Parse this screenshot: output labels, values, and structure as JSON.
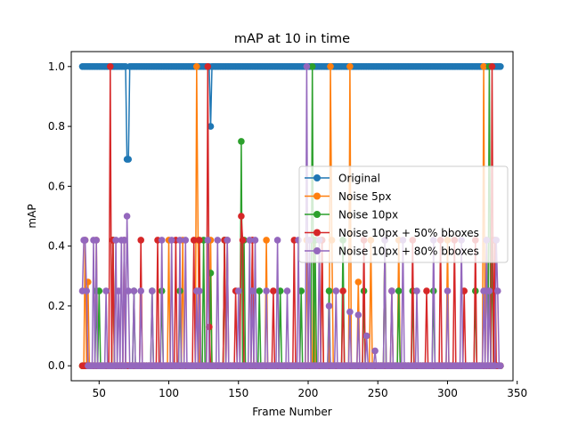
{
  "chart_data": {
    "type": "line",
    "title": "mAP at 10 in time",
    "xlabel": "Frame Number",
    "ylabel": "mAP",
    "xlim": [
      30,
      347
    ],
    "ylim": [
      -0.05,
      1.05
    ],
    "x_ticks": [
      50,
      100,
      150,
      200,
      250,
      300,
      350
    ],
    "y_ticks": [
      0.0,
      0.2,
      0.4,
      0.6,
      0.8,
      1.0
    ],
    "x_tick_labels": [
      "50",
      "100",
      "150",
      "200",
      "250",
      "300",
      "350"
    ],
    "y_tick_labels": [
      "0.0",
      "0.2",
      "0.4",
      "0.6",
      "0.8",
      "1.0"
    ],
    "grid": false,
    "legend_position": "center-right",
    "marker": "circle",
    "frame_range": [
      38,
      338
    ],
    "series": [
      {
        "name": "Original",
        "color": "#1f77b4",
        "base": 1.0,
        "points": [
          [
            70,
            0.69
          ],
          [
            71,
            0.69
          ],
          [
            72,
            1.0
          ],
          [
            129,
            1.0
          ],
          [
            130,
            0.8
          ],
          [
            131,
            1.0
          ]
        ]
      },
      {
        "name": "Noise 5px",
        "color": "#ff7f0e",
        "base": 0.0,
        "points": [
          [
            40,
            0.42
          ],
          [
            42,
            0.28
          ],
          [
            44,
            0.0
          ],
          [
            48,
            0.42
          ],
          [
            60,
            0.42
          ],
          [
            62,
            0.0
          ],
          [
            100,
            0.42
          ],
          [
            105,
            0.0
          ],
          [
            110,
            0.42
          ],
          [
            115,
            0.0
          ],
          [
            120,
            1.0
          ],
          [
            121,
            0.42
          ],
          [
            123,
            0.0
          ],
          [
            130,
            0.42
          ],
          [
            133,
            0.0
          ],
          [
            140,
            0.42
          ],
          [
            145,
            0.0
          ],
          [
            160,
            0.42
          ],
          [
            163,
            0.0
          ],
          [
            170,
            0.42
          ],
          [
            172,
            0.0
          ],
          [
            199,
            0.42
          ],
          [
            201,
            0.0
          ],
          [
            204,
            0.42
          ],
          [
            206,
            0.0
          ],
          [
            210,
            0.42
          ],
          [
            212,
            0.0
          ],
          [
            216,
            1.0
          ],
          [
            217,
            0.42
          ],
          [
            219,
            0.0
          ],
          [
            230,
            1.0
          ],
          [
            232,
            0.0
          ],
          [
            236,
            0.28
          ],
          [
            238,
            0.0
          ],
          [
            245,
            0.42
          ],
          [
            247,
            0.0
          ],
          [
            255,
            0.42
          ],
          [
            257,
            0.0
          ],
          [
            265,
            0.42
          ],
          [
            267,
            0.0
          ],
          [
            300,
            0.42
          ],
          [
            302,
            0.0
          ],
          [
            326,
            1.0
          ],
          [
            328,
            0.42
          ],
          [
            330,
            0.0
          ]
        ]
      },
      {
        "name": "Noise 10px",
        "color": "#2ca02c",
        "base": 0.0,
        "points": [
          [
            48,
            0.25
          ],
          [
            50,
            0.25
          ],
          [
            52,
            0.0
          ],
          [
            60,
            0.42
          ],
          [
            62,
            0.0
          ],
          [
            75,
            0.25
          ],
          [
            77,
            0.0
          ],
          [
            88,
            0.25
          ],
          [
            90,
            0.0
          ],
          [
            95,
            0.25
          ],
          [
            97,
            0.0
          ],
          [
            108,
            0.25
          ],
          [
            110,
            0.0
          ],
          [
            125,
            0.42
          ],
          [
            127,
            0.0
          ],
          [
            130,
            0.31
          ],
          [
            132,
            0.0
          ],
          [
            140,
            0.42
          ],
          [
            143,
            0.0
          ],
          [
            152,
            0.75
          ],
          [
            154,
            0.42
          ],
          [
            156,
            0.0
          ],
          [
            165,
            0.25
          ],
          [
            167,
            0.0
          ],
          [
            180,
            0.25
          ],
          [
            182,
            0.0
          ],
          [
            195,
            0.25
          ],
          [
            197,
            0.0
          ],
          [
            203,
            1.0
          ],
          [
            205,
            0.42
          ],
          [
            207,
            0.0
          ],
          [
            215,
            0.25
          ],
          [
            217,
            0.0
          ],
          [
            225,
            0.42
          ],
          [
            227,
            0.0
          ],
          [
            240,
            0.25
          ],
          [
            242,
            0.0
          ],
          [
            255,
            0.42
          ],
          [
            257,
            0.0
          ],
          [
            265,
            0.25
          ],
          [
            267,
            0.0
          ],
          [
            275,
            0.25
          ],
          [
            277,
            0.0
          ],
          [
            290,
            0.25
          ],
          [
            292,
            0.0
          ],
          [
            320,
            0.25
          ],
          [
            322,
            0.0
          ],
          [
            330,
            1.0
          ],
          [
            332,
            0.42
          ],
          [
            334,
            0.0
          ]
        ]
      },
      {
        "name": "Noise 10px + 50% bboxes",
        "color": "#d62728",
        "base": 0.0,
        "points": [
          [
            38,
            0.0
          ],
          [
            58,
            1.0
          ],
          [
            60,
            0.42
          ],
          [
            62,
            0.0
          ],
          [
            68,
            0.42
          ],
          [
            70,
            0.0
          ],
          [
            80,
            0.42
          ],
          [
            82,
            0.0
          ],
          [
            92,
            0.42
          ],
          [
            94,
            0.0
          ],
          [
            105,
            0.42
          ],
          [
            107,
            0.0
          ],
          [
            118,
            0.42
          ],
          [
            119,
            0.0
          ],
          [
            122,
            0.42
          ],
          [
            124,
            0.0
          ],
          [
            128,
            1.0
          ],
          [
            129,
            0.13
          ],
          [
            131,
            0.0
          ],
          [
            140,
            0.42
          ],
          [
            142,
            0.42
          ],
          [
            144,
            0.0
          ],
          [
            148,
            0.25
          ],
          [
            150,
            0.0
          ],
          [
            152,
            0.5
          ],
          [
            153,
            0.42
          ],
          [
            155,
            0.0
          ],
          [
            160,
            0.42
          ],
          [
            162,
            0.0
          ],
          [
            175,
            0.25
          ],
          [
            177,
            0.0
          ],
          [
            190,
            0.42
          ],
          [
            192,
            0.0
          ],
          [
            210,
            0.42
          ],
          [
            212,
            0.0
          ],
          [
            225,
            0.25
          ],
          [
            227,
            0.0
          ],
          [
            240,
            0.42
          ],
          [
            242,
            0.0
          ],
          [
            260,
            0.25
          ],
          [
            262,
            0.0
          ],
          [
            275,
            0.42
          ],
          [
            277,
            0.0
          ],
          [
            285,
            0.25
          ],
          [
            287,
            0.0
          ],
          [
            295,
            0.42
          ],
          [
            297,
            0.0
          ],
          [
            305,
            0.42
          ],
          [
            307,
            0.0
          ],
          [
            312,
            0.25
          ],
          [
            314,
            0.0
          ],
          [
            320,
            0.42
          ],
          [
            322,
            0.0
          ],
          [
            332,
            1.0
          ],
          [
            334,
            0.42
          ],
          [
            336,
            0.0
          ]
        ]
      },
      {
        "name": "Noise 10px + 80% bboxes",
        "color": "#9467bd",
        "base": 0.0,
        "points": [
          [
            38,
            0.25
          ],
          [
            39,
            0.42
          ],
          [
            40,
            0.42
          ],
          [
            41,
            0.25
          ],
          [
            43,
            0.0
          ],
          [
            46,
            0.42
          ],
          [
            48,
            0.42
          ],
          [
            50,
            0.0
          ],
          [
            55,
            0.25
          ],
          [
            57,
            0.0
          ],
          [
            62,
            0.42
          ],
          [
            64,
            0.25
          ],
          [
            66,
            0.42
          ],
          [
            68,
            0.42
          ],
          [
            70,
            0.5
          ],
          [
            71,
            0.25
          ],
          [
            72,
            0.0
          ],
          [
            75,
            0.25
          ],
          [
            77,
            0.0
          ],
          [
            80,
            0.25
          ],
          [
            82,
            0.0
          ],
          [
            88,
            0.25
          ],
          [
            90,
            0.0
          ],
          [
            95,
            0.42
          ],
          [
            97,
            0.0
          ],
          [
            102,
            0.42
          ],
          [
            104,
            0.0
          ],
          [
            108,
            0.42
          ],
          [
            110,
            0.0
          ],
          [
            112,
            0.42
          ],
          [
            114,
            0.0
          ],
          [
            120,
            0.25
          ],
          [
            122,
            0.25
          ],
          [
            124,
            0.0
          ],
          [
            128,
            0.42
          ],
          [
            130,
            0.0
          ],
          [
            135,
            0.42
          ],
          [
            137,
            0.0
          ],
          [
            142,
            0.42
          ],
          [
            144,
            0.0
          ],
          [
            150,
            0.25
          ],
          [
            152,
            0.0
          ],
          [
            158,
            0.42
          ],
          [
            160,
            0.25
          ],
          [
            162,
            0.42
          ],
          [
            164,
            0.0
          ],
          [
            170,
            0.25
          ],
          [
            172,
            0.0
          ],
          [
            178,
            0.42
          ],
          [
            180,
            0.0
          ],
          [
            185,
            0.25
          ],
          [
            187,
            0.0
          ],
          [
            193,
            0.42
          ],
          [
            195,
            0.0
          ],
          [
            199,
            1.0
          ],
          [
            201,
            0.42
          ],
          [
            203,
            0.0
          ],
          [
            208,
            0.42
          ],
          [
            210,
            0.0
          ],
          [
            215,
            0.2
          ],
          [
            217,
            0.0
          ],
          [
            220,
            0.25
          ],
          [
            222,
            0.0
          ],
          [
            230,
            0.18
          ],
          [
            232,
            0.0
          ],
          [
            236,
            0.17
          ],
          [
            238,
            0.0
          ],
          [
            242,
            0.1
          ],
          [
            244,
            0.0
          ],
          [
            248,
            0.05
          ],
          [
            250,
            0.0
          ],
          [
            255,
            0.42
          ],
          [
            257,
            0.0
          ],
          [
            260,
            0.25
          ],
          [
            262,
            0.0
          ],
          [
            268,
            0.42
          ],
          [
            270,
            0.0
          ],
          [
            278,
            0.25
          ],
          [
            280,
            0.0
          ],
          [
            290,
            0.42
          ],
          [
            292,
            0.0
          ],
          [
            300,
            0.25
          ],
          [
            302,
            0.0
          ],
          [
            310,
            0.42
          ],
          [
            312,
            0.0
          ],
          [
            326,
            0.25
          ],
          [
            328,
            0.42
          ],
          [
            330,
            0.25
          ],
          [
            332,
            0.0
          ],
          [
            335,
            0.42
          ],
          [
            336,
            0.25
          ],
          [
            338,
            0.0
          ]
        ]
      }
    ]
  }
}
